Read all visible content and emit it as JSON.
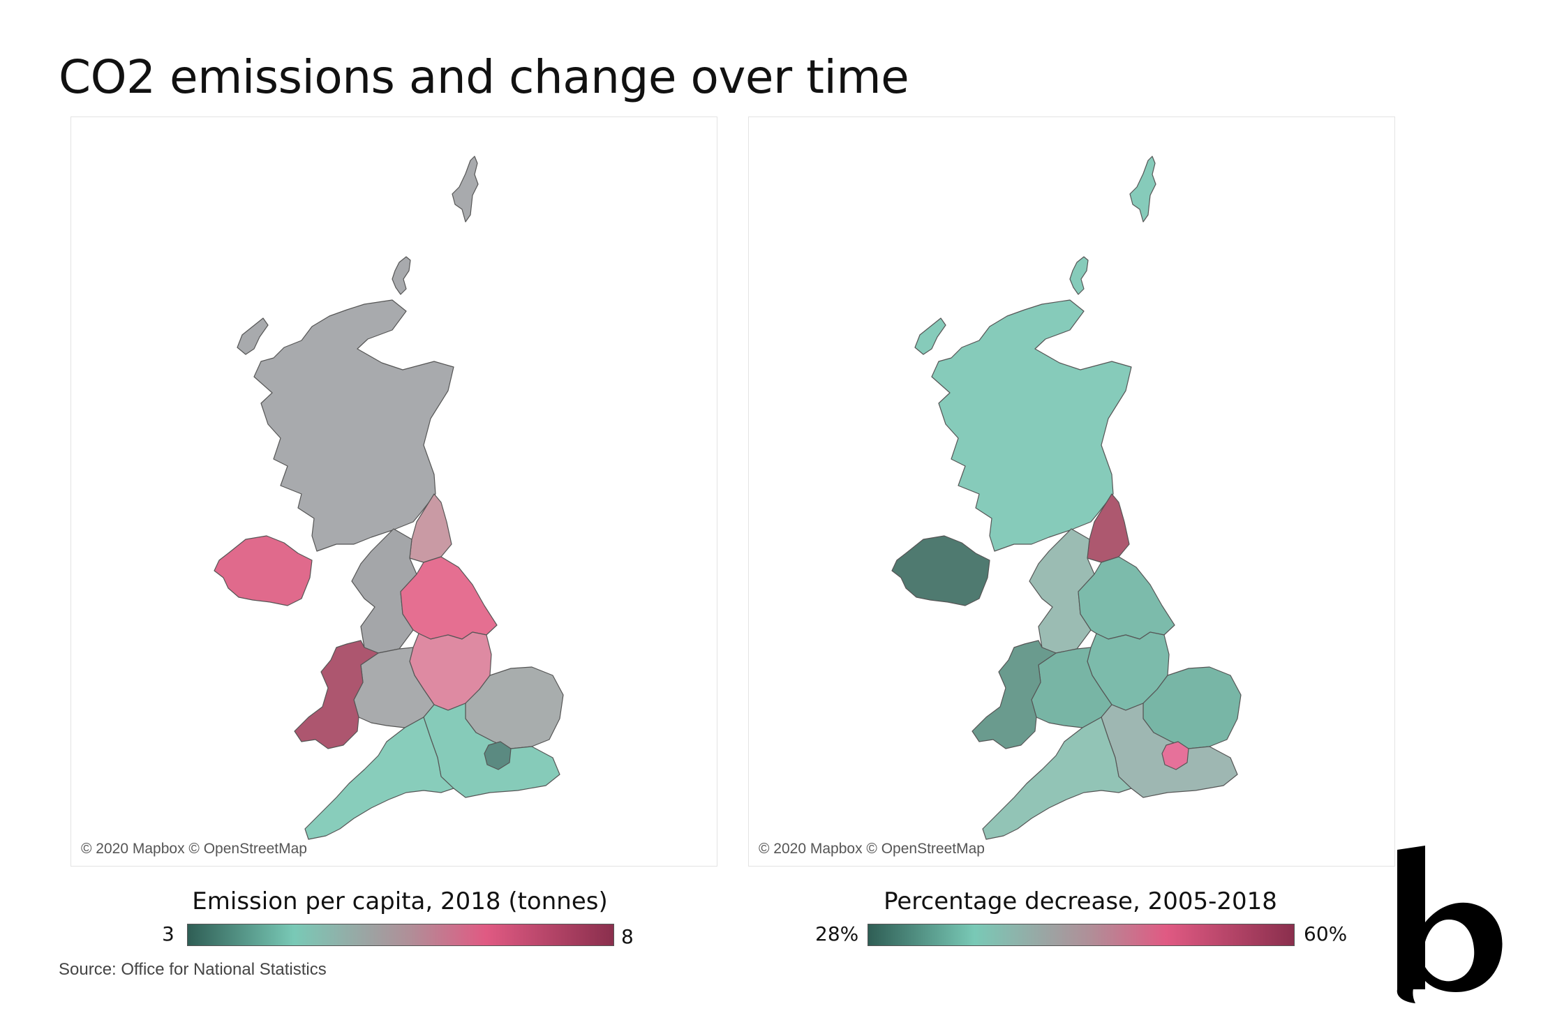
{
  "title": "CO2 emissions and change over time",
  "maps": [
    {
      "attribution": "© 2020 Mapbox © OpenStreetMap",
      "legend": {
        "title": "Emission per capita, 2018 (tonnes)",
        "min": "3",
        "max": "8"
      },
      "regions": {
        "shetland": "#a8aaad",
        "orkney": "#a8aaad",
        "scotland": "#a8aaad",
        "north_east": "#c99aa4",
        "north_west": "#a4a6a9",
        "yorkshire": "#e56f91",
        "east_midlands": "#de8aa2",
        "west_midlands": "#a9abad",
        "wales": "#ad566f",
        "east_england": "#a8adad",
        "south_east": "#86cbb9",
        "london": "#5b8a81",
        "south_west": "#88cdbb",
        "northern_ireland": "#e06a8c"
      }
    },
    {
      "attribution": "© 2020 Mapbox © OpenStreetMap",
      "legend": {
        "title": "Percentage decrease, 2005-2018",
        "min": "28%",
        "max": "60%"
      },
      "regions": {
        "shetland": "#86cbba",
        "orkney": "#86cbba",
        "scotland": "#86cbba",
        "north_east": "#ad586f",
        "north_west": "#9bbcb3",
        "yorkshire": "#7cbbab",
        "east_midlands": "#7cbbab",
        "west_midlands": "#78b5a5",
        "wales": "#6a9b8e",
        "east_england": "#78b6a6",
        "south_east": "#9eb7b2",
        "london": "#e6719a",
        "south_west": "#92c4b6",
        "northern_ireland": "#4f7a70"
      }
    }
  ],
  "source": "Source: Office for National Statistics",
  "brand_icon": "b-logo-icon"
}
